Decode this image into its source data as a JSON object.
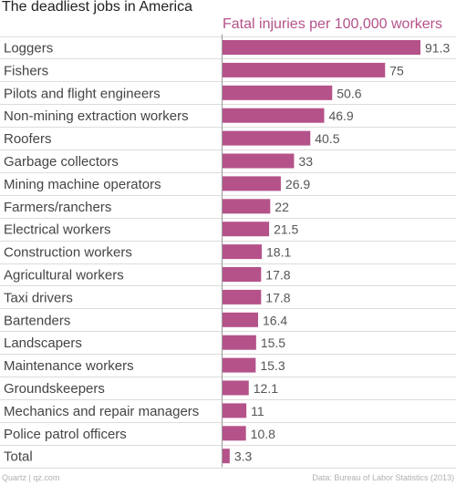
{
  "colors": {
    "bar": "#b5528a",
    "grid": "#dcdcdc",
    "label": "#444444",
    "value": "#555555"
  },
  "footer": {
    "left": "Quartz | qz.com",
    "right": "Data: Bureau of Labor Statistics (2013)"
  },
  "chart_data": {
    "type": "bar",
    "orientation": "horizontal",
    "title": "The deadliest jobs in America",
    "subtitle": "Fatal injuries per 100,000 workers",
    "xlabel": "",
    "ylabel": "",
    "grid": true,
    "categories": [
      "Loggers",
      "Fishers",
      "Pilots and flight engineers",
      "Non-mining extraction workers",
      "Roofers",
      "Garbage collectors",
      "Mining machine operators",
      "Farmers/ranchers",
      "Electrical workers",
      "Construction workers",
      "Agricultural workers",
      "Taxi drivers",
      "Bartenders",
      "Landscapers",
      "Maintenance workers",
      "Groundskeepers",
      "Mechanics and repair managers",
      "Police patrol officers",
      "Total"
    ],
    "values": [
      91.3,
      75,
      50.6,
      46.9,
      40.5,
      33,
      26.9,
      22,
      21.5,
      18.1,
      17.8,
      17.8,
      16.4,
      15.5,
      15.3,
      12.1,
      11,
      10.8,
      3.3
    ],
    "value_labels": [
      "91.3",
      "75",
      "50.6",
      "46.9",
      "40.5",
      "33",
      "26.9",
      "22",
      "21.5",
      "18.1",
      "17.8",
      "17.8",
      "16.4",
      "15.5",
      "15.3",
      "12.1",
      "11",
      "10.8",
      "3.3"
    ],
    "xlim": [
      0,
      91.3
    ]
  }
}
